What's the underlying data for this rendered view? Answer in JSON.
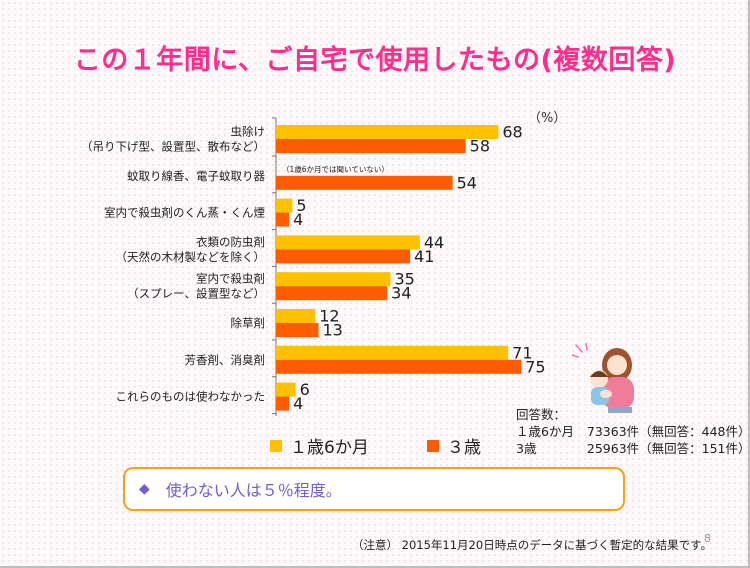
{
  "slide": {
    "title": "この１年間に、ご自宅で使用したもの(複数回答)",
    "unit_label": "（%）",
    "legend": {
      "series1_label": "１歳6か月",
      "series2_label": "３歳"
    },
    "respondents": {
      "heading": "回答数：",
      "rows": [
        {
          "label": "１歳6か月",
          "value": "73363件（無回答：448件）"
        },
        {
          "label": "3歳",
          "value": "25963件（無回答：151件）"
        }
      ]
    },
    "callout_icon": "diamond-bullet-icon",
    "callout": "使わない人は５％程度。",
    "footnote": "（注意） 2015年11月20日時点のデータに基づく暫定的な結果です。",
    "page_number": "8"
  },
  "chart_data": {
    "type": "bar",
    "orientation": "horizontal",
    "categories": [
      [
        "虫除け",
        "（吊り下げ型、設置型、散布など）"
      ],
      [
        "蚊取り線香、電子蚊取り器"
      ],
      [
        "室内で殺虫剤のくん蒸・くん煙"
      ],
      [
        "衣類の防虫剤",
        "（天然の木材製などを除く）"
      ],
      [
        "室内で殺虫剤",
        "（スプレー、設置型など）"
      ],
      [
        "除草剤"
      ],
      [
        "芳香剤、消臭剤"
      ],
      [
        "これらのものは使わなかった"
      ]
    ],
    "series": [
      {
        "name": "１歳6か月",
        "color": "#ffc000",
        "values": [
          68,
          null,
          5,
          44,
          35,
          12,
          71,
          6
        ]
      },
      {
        "name": "３歳",
        "color": "#ff5b00",
        "values": [
          58,
          54,
          4,
          41,
          34,
          13,
          75,
          4
        ]
      }
    ],
    "annotations": [
      {
        "category_index": 1,
        "text": "（1歳6か月では聞いていない）"
      }
    ],
    "ylabel": "（%）",
    "xlim": [
      0,
      100
    ],
    "legend_position": "bottom"
  }
}
